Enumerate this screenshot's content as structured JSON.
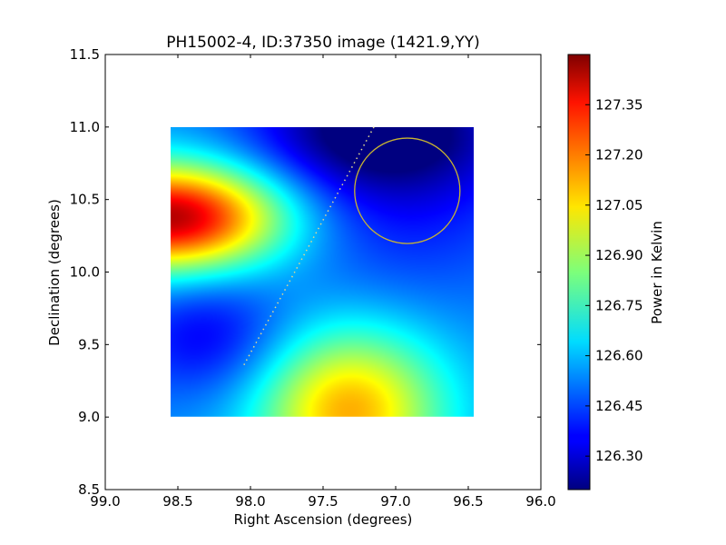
{
  "chart_data": {
    "type": "heatmap",
    "title": "PH15002-4, ID:37350 image (1421.9,YY)",
    "xlabel": "Right Ascension (degrees)",
    "ylabel": "Declination (degrees)",
    "xlim": [
      99.0,
      96.0
    ],
    "ylim": [
      8.5,
      11.5
    ],
    "x_ticks": [
      "99.0",
      "98.5",
      "98.0",
      "97.5",
      "97.0",
      "96.5",
      "96.0"
    ],
    "y_ticks": [
      "8.5",
      "9.0",
      "9.5",
      "10.0",
      "10.5",
      "11.0",
      "11.5"
    ],
    "image_extent": {
      "ra": [
        98.55,
        96.46
      ],
      "dec": [
        9.0,
        11.0
      ]
    },
    "colormap": "jet",
    "colorbar": {
      "label": "Power in Kelvin",
      "range": [
        126.2,
        127.5
      ],
      "ticks": [
        "126.30",
        "126.45",
        "126.60",
        "126.75",
        "126.90",
        "127.05",
        "127.20",
        "127.35"
      ]
    },
    "features": {
      "high": [
        {
          "ra": 98.55,
          "dec": 10.38,
          "value": 127.45
        },
        {
          "ra": 97.32,
          "dec": 9.05,
          "value": 127.12
        }
      ],
      "low": [
        {
          "ra": 97.1,
          "dec": 11.0,
          "value": 126.22
        },
        {
          "ra": 98.3,
          "dec": 9.55,
          "value": 126.35
        },
        {
          "ra": 97.0,
          "dec": 10.55,
          "value": 126.38
        }
      ],
      "background": 126.55
    },
    "circle": {
      "ra": 96.92,
      "dec": 10.56,
      "radius": 0.37,
      "color": "#c8b432"
    },
    "dotted_line": {
      "points": [
        [
          97.15,
          11.0
        ],
        [
          98.05,
          9.35
        ]
      ],
      "color": "#e0d890"
    }
  }
}
